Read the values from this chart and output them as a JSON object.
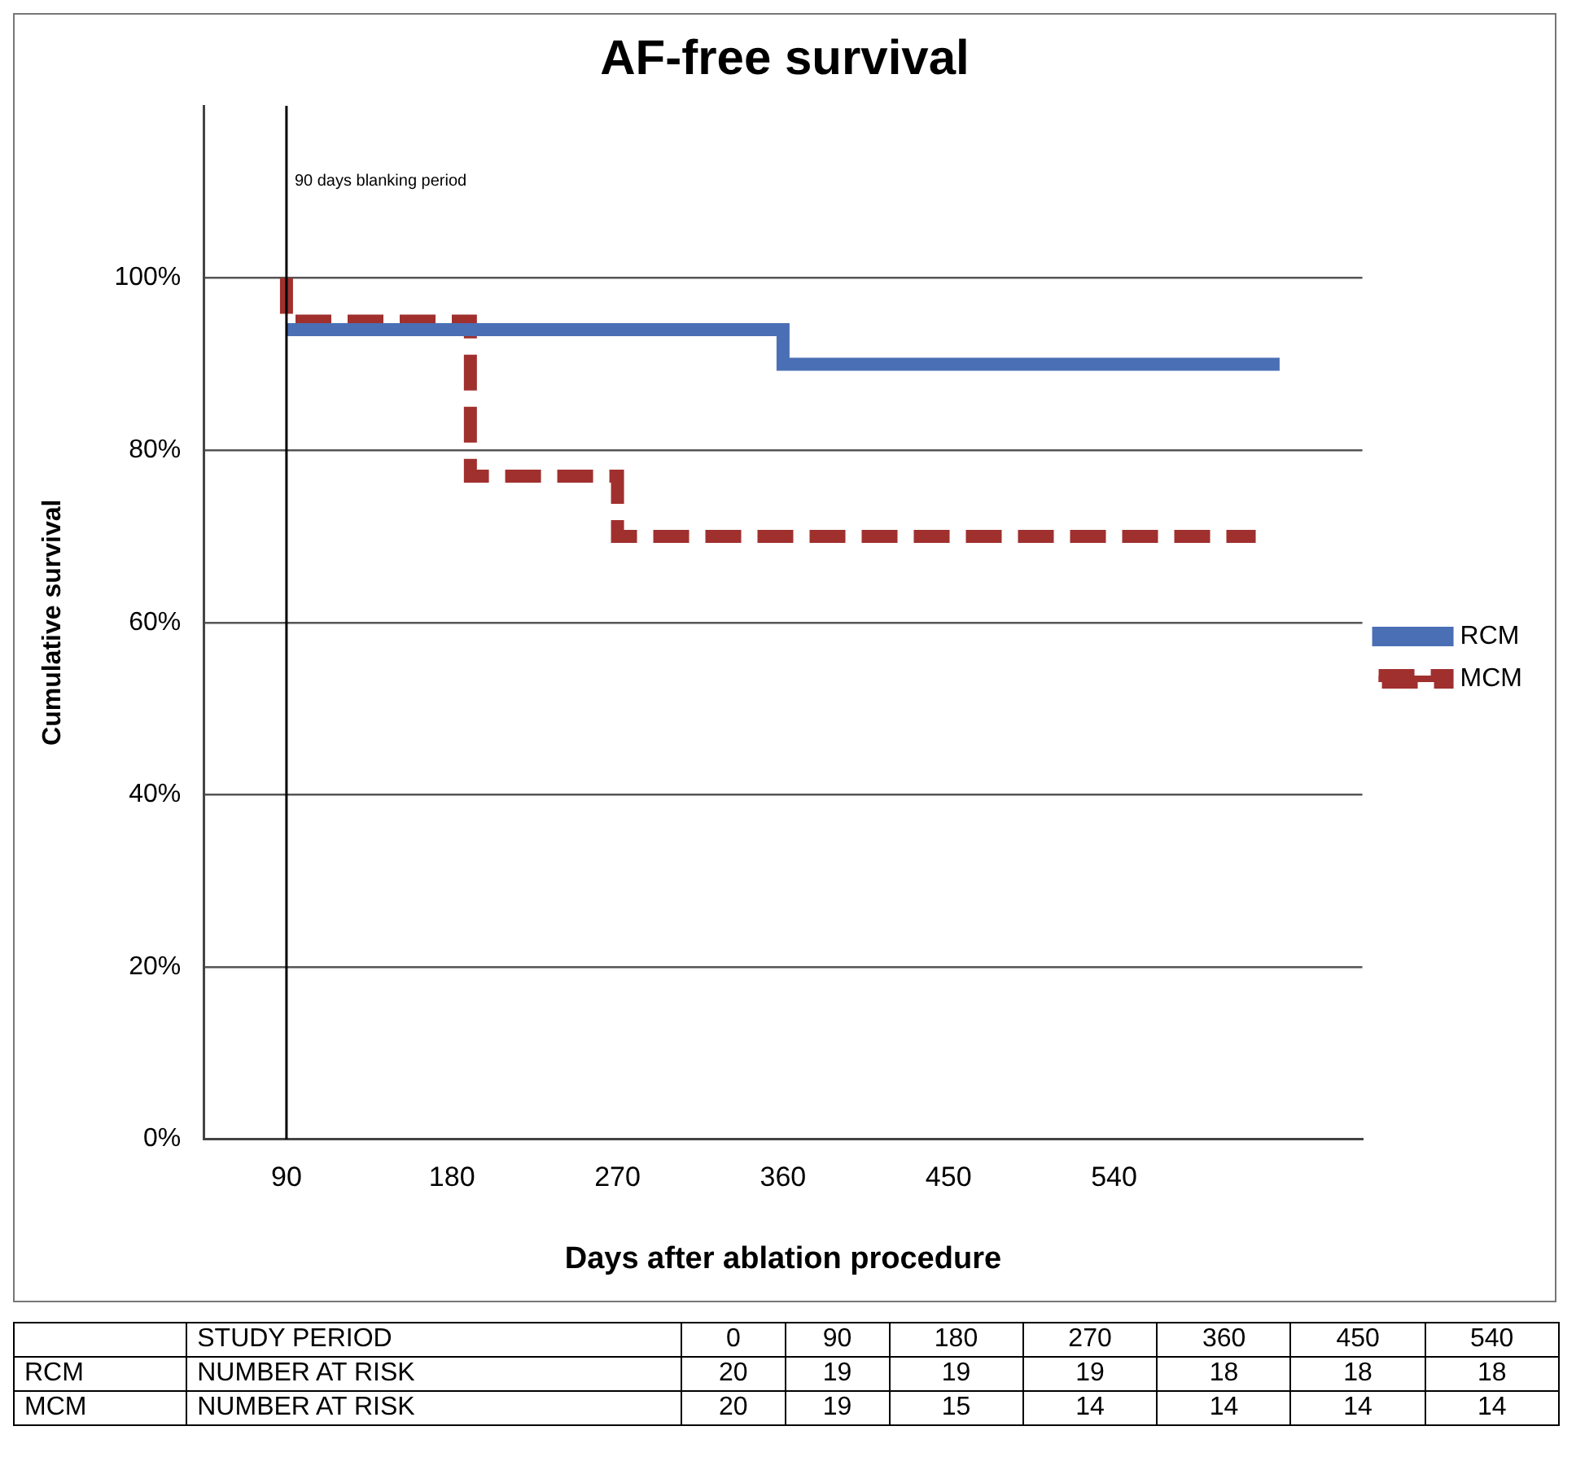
{
  "chart_data": {
    "type": "step",
    "title": "AF-free survival",
    "xlabel": "Days after ablation procedure",
    "ylabel": "Cumulative survival",
    "series": [
      {
        "name": "RCM",
        "color": "#4a6fb5",
        "line_style": "solid",
        "x": [
          90,
          360,
          630
        ],
        "values": [
          94,
          90,
          90
        ]
      },
      {
        "name": "MCM",
        "color": "#a0302e",
        "line_style": "dashed",
        "x": [
          90,
          90,
          190,
          270,
          617
        ],
        "values": [
          100,
          95,
          77,
          70,
          70
        ]
      }
    ],
    "xlim": [
      45,
      675
    ],
    "xticks": [
      90,
      180,
      270,
      360,
      450,
      540
    ],
    "ylim": [
      0,
      120
    ],
    "yticks": [
      {
        "value": 0,
        "label": "0%"
      },
      {
        "value": 20,
        "label": "20%"
      },
      {
        "value": 40,
        "label": "40%"
      },
      {
        "value": 60,
        "label": "60%"
      },
      {
        "value": 80,
        "label": "80%"
      },
      {
        "value": 100,
        "label": "100%"
      }
    ],
    "grid": "y",
    "legend": "right",
    "marker": "none",
    "ref_lines": [
      {
        "axis": "x",
        "value": 90,
        "label": "90 days blanking period",
        "color": "#000000"
      }
    ],
    "annotations": [
      "STUDY PERIOD",
      "0",
      "90",
      "180",
      "270",
      "360",
      "450",
      "540",
      "RCM",
      "NUMBER AT RISK",
      "20",
      "19",
      "19",
      "19",
      "18",
      "18",
      "18",
      "MCM",
      "NUMBER AT RISK",
      "20",
      "19",
      "15",
      "14",
      "14",
      "14",
      "14"
    ]
  }
}
